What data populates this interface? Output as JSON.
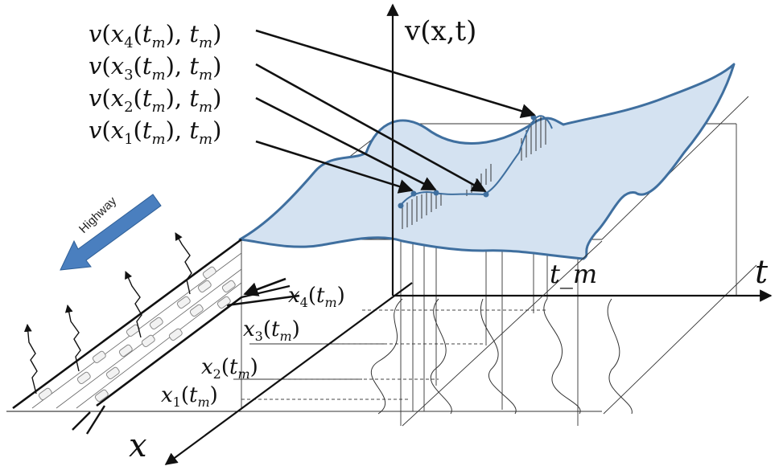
{
  "axes": {
    "v_axis": "v(x,t)",
    "t_axis": "t",
    "x_axis": "x",
    "t_marker": "t_m"
  },
  "callouts": {
    "v4": {
      "fn": "v",
      "arg": "x",
      "sub": "4",
      "time": "t",
      "time_sub": "m"
    },
    "v3": {
      "fn": "v",
      "arg": "x",
      "sub": "3",
      "time": "t",
      "time_sub": "m"
    },
    "v2": {
      "fn": "v",
      "arg": "x",
      "sub": "2",
      "time": "t",
      "time_sub": "m"
    },
    "v1": {
      "fn": "v",
      "arg": "x",
      "sub": "1",
      "time": "t",
      "time_sub": "m"
    }
  },
  "positions": {
    "x4": {
      "var": "x",
      "sub": "4",
      "time": "t",
      "time_sub": "m"
    },
    "x3": {
      "var": "x",
      "sub": "3",
      "time": "t",
      "time_sub": "m"
    },
    "x2": {
      "var": "x",
      "sub": "2",
      "time": "t",
      "time_sub": "m"
    },
    "x1": {
      "var": "x",
      "sub": "1",
      "time": "t",
      "time_sub": "m"
    }
  },
  "highway": {
    "label": "Highway"
  },
  "colors": {
    "surface_fill": "#d4e2f1",
    "surface_stroke": "#3f6f9f",
    "arrow_fill": "#4a7fbf",
    "ink": "#111111"
  }
}
